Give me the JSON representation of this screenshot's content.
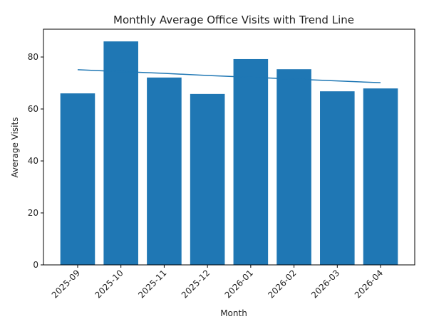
{
  "chart_data": {
    "type": "bar",
    "title": "Monthly Average Office Visits with Trend Line",
    "xlabel": "Month",
    "ylabel": "Average Visits",
    "categories": [
      "2025-09",
      "2025-10",
      "2025-11",
      "2025-12",
      "2026-01",
      "2026-02",
      "2026-03",
      "2026-04"
    ],
    "series": [
      {
        "type": "bar",
        "color": "#1f77b4",
        "values": [
          66.0,
          86.0,
          72.1,
          65.8,
          79.2,
          75.3,
          66.8,
          67.9
        ]
      },
      {
        "type": "line",
        "color": "#1f77b4",
        "values": [
          75.1,
          74.4,
          73.7,
          72.9,
          72.2,
          71.5,
          70.8,
          70.1
        ]
      }
    ],
    "ylim": [
      0,
      90.7
    ],
    "yticks": [
      0,
      20,
      40,
      60,
      80
    ],
    "grid": false
  }
}
